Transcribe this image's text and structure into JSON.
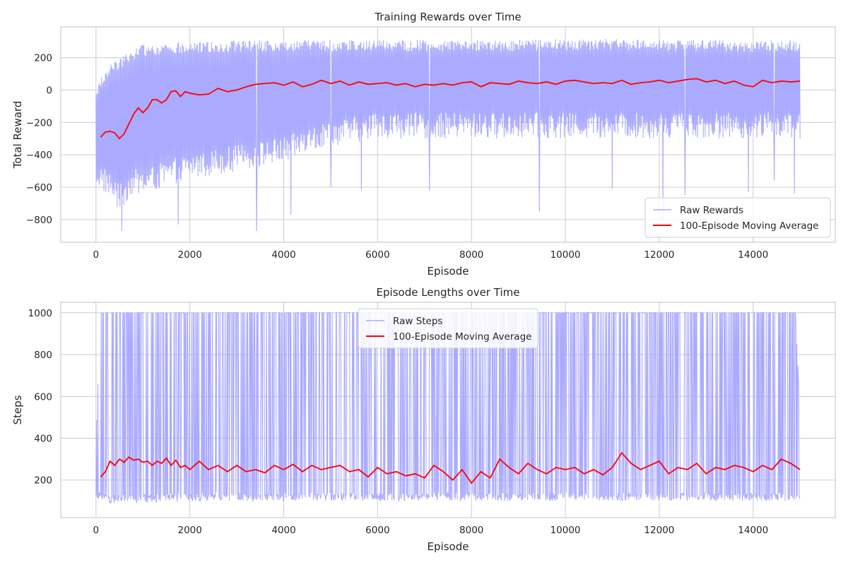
{
  "chart_data": [
    {
      "type": "line",
      "title": "Training Rewards over Time",
      "xlabel": "Episode",
      "ylabel": "Total Reward",
      "xlim": [
        -750,
        15750
      ],
      "ylim": [
        -940,
        390
      ],
      "xticks": [
        0,
        2000,
        4000,
        6000,
        8000,
        10000,
        12000,
        14000
      ],
      "yticks": [
        -800,
        -600,
        -400,
        -200,
        0,
        200
      ],
      "ytick_labels": [
        "−800",
        "−600",
        "−400",
        "−200",
        "0",
        "200"
      ],
      "grid": true,
      "legend_position": "lower-right",
      "series": [
        {
          "name": "Raw Rewards",
          "color": "#aaaaff",
          "style": "envelope",
          "x": [
            0,
            250,
            500,
            750,
            1000,
            1500,
            2000,
            3000,
            4000,
            5000,
            6000,
            7000,
            8000,
            9000,
            10000,
            11000,
            12000,
            13000,
            14000,
            15000
          ],
          "upper": [
            20,
            150,
            200,
            250,
            280,
            290,
            300,
            305,
            310,
            310,
            310,
            310,
            310,
            310,
            315,
            315,
            310,
            310,
            305,
            310
          ],
          "lower": [
            -600,
            -650,
            -750,
            -650,
            -650,
            -600,
            -550,
            -500,
            -450,
            -350,
            -300,
            -300,
            -300,
            -300,
            -300,
            -300,
            -300,
            -300,
            -300,
            -300
          ],
          "spikes": [
            [
              550,
              -870
            ],
            [
              1750,
              -830
            ],
            [
              3420,
              -870
            ],
            [
              4150,
              -770
            ],
            [
              5000,
              -600
            ],
            [
              5650,
              -620
            ],
            [
              7100,
              -620
            ],
            [
              9450,
              -750
            ],
            [
              11000,
              -610
            ],
            [
              12080,
              -800
            ],
            [
              12550,
              -650
            ],
            [
              13900,
              -630
            ],
            [
              14450,
              -560
            ],
            [
              14880,
              -640
            ]
          ]
        },
        {
          "name": "100-Episode Moving Average",
          "color": "#ff0000",
          "style": "line",
          "x": [
            100,
            200,
            300,
            400,
            500,
            600,
            700,
            800,
            900,
            1000,
            1100,
            1200,
            1300,
            1400,
            1500,
            1600,
            1700,
            1800,
            1900,
            2000,
            2200,
            2400,
            2600,
            2800,
            3000,
            3200,
            3400,
            3600,
            3800,
            4000,
            4200,
            4400,
            4600,
            4800,
            5000,
            5200,
            5400,
            5600,
            5800,
            6000,
            6200,
            6400,
            6600,
            6800,
            7000,
            7200,
            7400,
            7600,
            7800,
            8000,
            8200,
            8400,
            8600,
            8800,
            9000,
            9200,
            9400,
            9600,
            9800,
            10000,
            10200,
            10400,
            10600,
            10800,
            11000,
            11200,
            11400,
            11600,
            11800,
            12000,
            12200,
            12400,
            12600,
            12800,
            13000,
            13200,
            13400,
            13600,
            13800,
            14000,
            14200,
            14400,
            14600,
            14800,
            15000
          ],
          "y": [
            -290,
            -260,
            -255,
            -265,
            -300,
            -270,
            -210,
            -150,
            -110,
            -140,
            -110,
            -60,
            -60,
            -80,
            -60,
            -10,
            -5,
            -40,
            -10,
            -20,
            -30,
            -25,
            10,
            -10,
            0,
            20,
            35,
            40,
            45,
            30,
            50,
            20,
            35,
            60,
            40,
            55,
            30,
            50,
            35,
            40,
            45,
            30,
            40,
            20,
            35,
            30,
            40,
            30,
            45,
            50,
            20,
            45,
            40,
            35,
            55,
            45,
            40,
            50,
            35,
            55,
            60,
            50,
            40,
            45,
            40,
            60,
            35,
            45,
            50,
            60,
            45,
            55,
            65,
            70,
            50,
            60,
            40,
            55,
            30,
            20,
            60,
            45,
            55,
            50,
            55
          ]
        }
      ]
    },
    {
      "type": "line",
      "title": "Episode Lengths over Time",
      "xlabel": "Episode",
      "ylabel": "Steps",
      "xlim": [
        -750,
        15750
      ],
      "ylim": [
        20,
        1050
      ],
      "xticks": [
        0,
        2000,
        4000,
        6000,
        8000,
        10000,
        12000,
        14000
      ],
      "yticks": [
        200,
        400,
        600,
        800,
        1000
      ],
      "grid": true,
      "legend_position": "upper-center",
      "series": [
        {
          "name": "Raw Steps",
          "color": "#aaaaff",
          "style": "envelope",
          "x": [
            0,
            100,
            300,
            1000,
            2000,
            4000,
            6000,
            8000,
            10000,
            12000,
            14000,
            14900,
            15000
          ],
          "upper": [
            430,
            1000,
            1000,
            1000,
            1000,
            1000,
            1000,
            1000,
            1000,
            1000,
            1000,
            1000,
            500
          ],
          "lower": [
            120,
            100,
            90,
            90,
            100,
            100,
            100,
            100,
            100,
            100,
            100,
            100,
            100
          ],
          "spikes": []
        },
        {
          "name": "100-Episode Moving Average",
          "color": "#ff0000",
          "style": "line",
          "x": [
            100,
            200,
            300,
            400,
            500,
            600,
            700,
            800,
            900,
            1000,
            1100,
            1200,
            1300,
            1400,
            1500,
            1600,
            1700,
            1800,
            1900,
            2000,
            2200,
            2400,
            2600,
            2800,
            3000,
            3200,
            3400,
            3600,
            3800,
            4000,
            4200,
            4400,
            4600,
            4800,
            5000,
            5200,
            5400,
            5600,
            5800,
            6000,
            6200,
            6400,
            6600,
            6800,
            7000,
            7200,
            7400,
            7600,
            7800,
            8000,
            8200,
            8400,
            8600,
            8800,
            9000,
            9200,
            9400,
            9600,
            9800,
            10000,
            10200,
            10400,
            10600,
            10800,
            11000,
            11200,
            11400,
            11600,
            11800,
            12000,
            12200,
            12400,
            12600,
            12800,
            13000,
            13200,
            13400,
            13600,
            13800,
            14000,
            14200,
            14400,
            14600,
            14800,
            15000
          ],
          "y": [
            215,
            240,
            290,
            270,
            300,
            285,
            310,
            295,
            300,
            285,
            290,
            270,
            290,
            280,
            305,
            270,
            295,
            260,
            270,
            250,
            290,
            250,
            270,
            240,
            270,
            240,
            250,
            235,
            270,
            250,
            275,
            240,
            270,
            250,
            260,
            270,
            240,
            250,
            215,
            260,
            230,
            240,
            220,
            230,
            210,
            270,
            240,
            200,
            250,
            185,
            240,
            210,
            300,
            260,
            230,
            280,
            250,
            230,
            260,
            250,
            260,
            230,
            250,
            225,
            260,
            330,
            280,
            250,
            270,
            290,
            230,
            260,
            250,
            280,
            230,
            260,
            250,
            270,
            260,
            240,
            270,
            250,
            300,
            280,
            250
          ]
        }
      ]
    }
  ]
}
